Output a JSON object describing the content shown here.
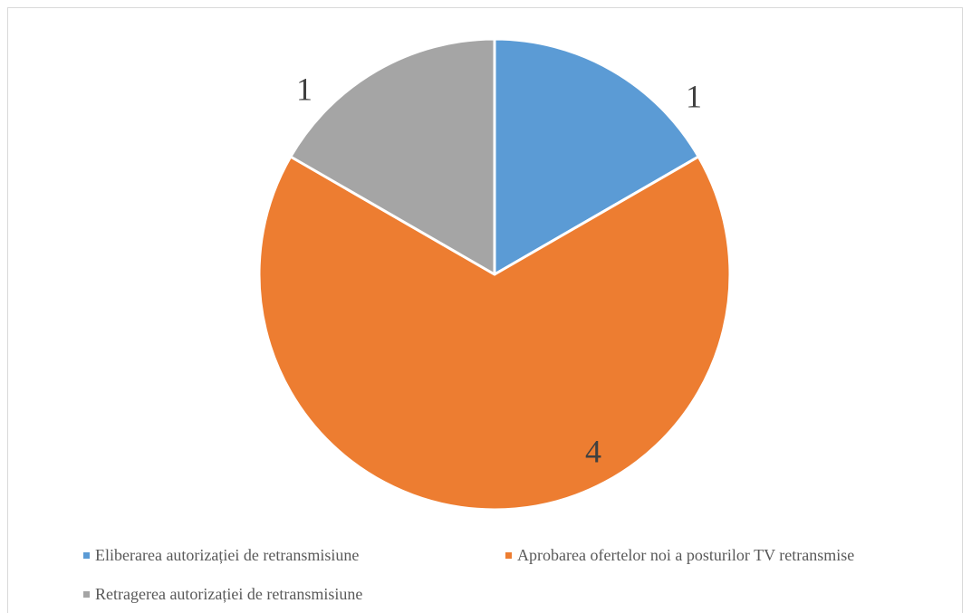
{
  "chart_data": {
    "type": "pie",
    "title": "",
    "categories": [
      "Eliberarea autorizației de retransmisiune",
      "Aprobarea ofertelor noi a posturilor TV retransmise",
      "Retragerea autorizației de retransmisiune"
    ],
    "values": [
      1,
      4,
      1
    ],
    "data_labels": [
      "1",
      "4",
      "1"
    ],
    "colors": [
      "#5b9bd5",
      "#ed7d31",
      "#a5a5a5"
    ],
    "start_angle": "12 o'clock",
    "direction": "clockwise",
    "legend_position": "bottom"
  }
}
